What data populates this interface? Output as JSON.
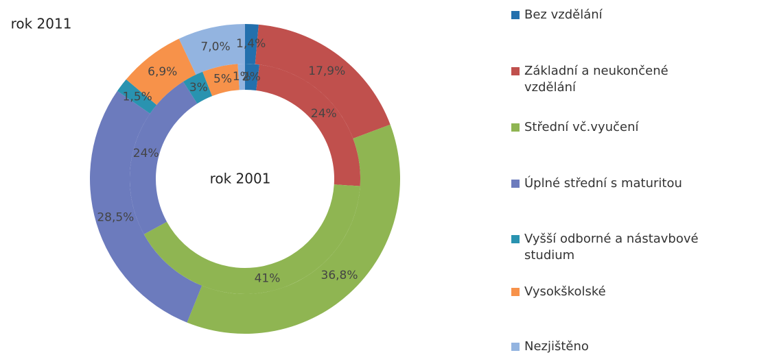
{
  "chart_data": {
    "type": "donut",
    "categories": [
      "Bez vzdělání",
      "Základní a neukončené vzdělání",
      "Střední vč.vyučení",
      "Úplné střední s maturitou",
      "Vyšší odborné a nástavbové studium",
      "Vysokškolské",
      "Nezjištěno"
    ],
    "colors": [
      "#2370ad",
      "#c0504d",
      "#8fb552",
      "#6c7bbd",
      "#2993b0",
      "#f7924a",
      "#93b4e0"
    ],
    "series": [
      {
        "name": "rok 2011",
        "values": [
          1.4,
          17.9,
          36.8,
          28.5,
          1.5,
          6.9,
          7.0
        ],
        "value_labels": [
          "1,4%",
          "17,9%",
          "36,8%",
          "28,5%",
          "1,5%",
          "6,9%",
          "7,0%"
        ]
      },
      {
        "name": "rok 2001",
        "values": [
          2,
          24,
          41,
          24,
          3,
          5,
          1
        ],
        "value_labels": [
          "2%",
          "24%",
          "41%",
          "24%",
          "3%",
          "5%",
          "1%"
        ]
      }
    ]
  }
}
